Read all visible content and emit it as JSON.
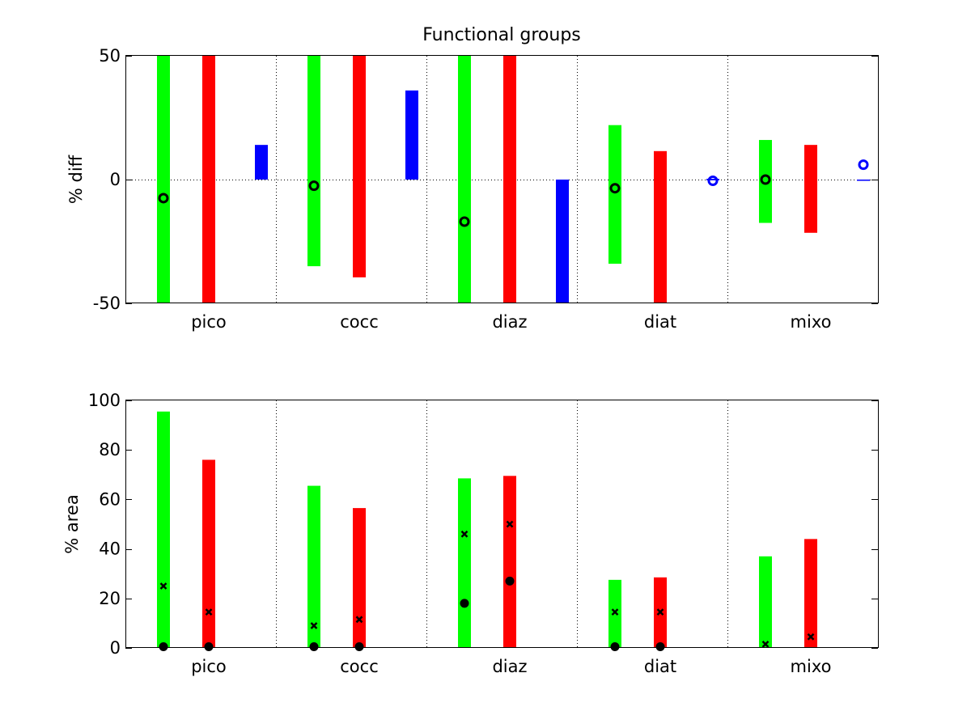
{
  "chart_data": [
    {
      "type": "bar",
      "subtype": "floating-range",
      "title": "Functional groups",
      "xlabel": "",
      "ylabel": "% diff",
      "ylim": [
        -50,
        50
      ],
      "yticks": [
        -50,
        0,
        50
      ],
      "categories": [
        "pico",
        "cocc",
        "diaz",
        "diat",
        "mixo"
      ],
      "grid": "dotted vertical separators between groups, dotted zero line",
      "series": [
        {
          "color": "#00ff00",
          "ranges": [
            [
              -50,
              50
            ],
            [
              -35,
              50
            ],
            [
              -50,
              50
            ],
            [
              -34,
              22
            ],
            [
              -17.5,
              16
            ]
          ],
          "marker": "circle",
          "marker_color": "#000000",
          "marker_values": [
            -7.5,
            -2.5,
            -17,
            -3.5,
            0
          ]
        },
        {
          "color": "#ff0000",
          "ranges": [
            [
              -50,
              50
            ],
            [
              -39.5,
              50
            ],
            [
              -50,
              50
            ],
            [
              -50,
              11.5
            ],
            [
              -21.5,
              14
            ]
          ],
          "marker": "none",
          "marker_values": [
            null,
            null,
            null,
            null,
            null
          ]
        },
        {
          "color": "#0000ff",
          "ranges": [
            [
              0,
              14
            ],
            [
              0,
              36
            ],
            [
              -50,
              0
            ],
            [
              -0.3,
              0.3
            ],
            [
              -0.5,
              0
            ]
          ],
          "marker": "circle",
          "marker_color": "#0000ff",
          "marker_values": [
            null,
            null,
            null,
            -0.5,
            6
          ]
        }
      ]
    },
    {
      "type": "bar",
      "subtype": "floating-range",
      "title": "",
      "xlabel": "",
      "ylabel": "% area",
      "ylim": [
        0,
        100
      ],
      "yticks": [
        0,
        20,
        40,
        60,
        80,
        100
      ],
      "categories": [
        "pico",
        "cocc",
        "diaz",
        "diat",
        "mixo"
      ],
      "grid": "dotted vertical separators between groups",
      "series": [
        {
          "color": "#00ff00",
          "ranges": [
            [
              0,
              95.5
            ],
            [
              0,
              65.5
            ],
            [
              0,
              68.5
            ],
            [
              0,
              27.5
            ],
            [
              0,
              37
            ]
          ],
          "x_marker_values": [
            25,
            9,
            46,
            14.5,
            1.5
          ],
          "dot_marker_values": [
            0.5,
            0.5,
            18,
            0.5,
            null
          ]
        },
        {
          "color": "#ff0000",
          "ranges": [
            [
              0,
              76
            ],
            [
              0,
              56.5
            ],
            [
              0,
              69.5
            ],
            [
              0,
              28.5
            ],
            [
              0,
              44
            ]
          ],
          "x_marker_values": [
            14.5,
            11.5,
            50,
            14.5,
            4.5
          ],
          "dot_marker_values": [
            0.5,
            0.5,
            27,
            0.5,
            null
          ]
        }
      ]
    }
  ]
}
